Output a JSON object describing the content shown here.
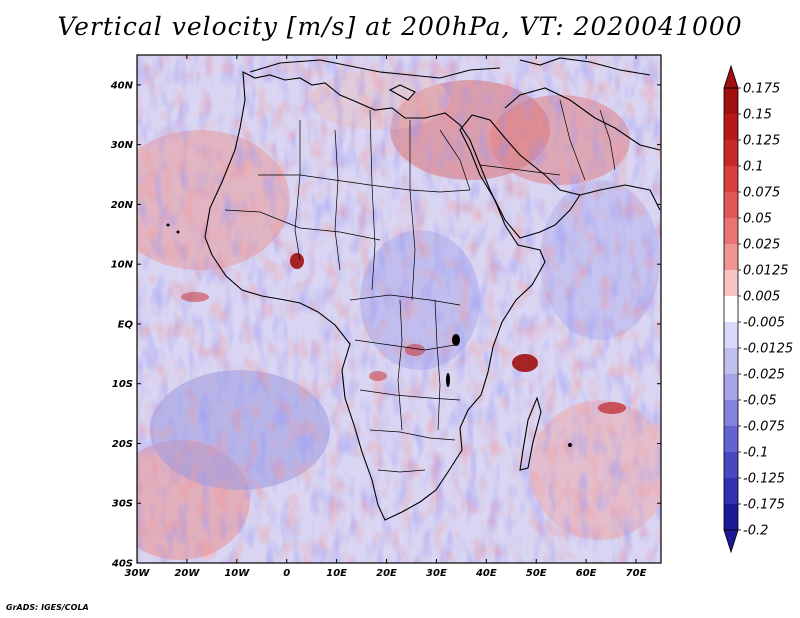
{
  "title": "Vertical velocity [m/s] at 200hPa, VT: 2020041000",
  "credit": "GrADS: IGES/COLA",
  "colors": {
    "positive_strong": "#a01010",
    "positive_light": "#f0b4b4",
    "negative_strong": "#1a1a99",
    "negative_light": "#c0c0ef",
    "zero_band": "#ffffff",
    "coastline": "#000000"
  },
  "map": {
    "lon_range": [
      -30,
      75
    ],
    "lat_range": [
      -40,
      45
    ],
    "lat_ticks": [
      {
        "value": 40,
        "label": "40N"
      },
      {
        "value": 30,
        "label": "30N"
      },
      {
        "value": 20,
        "label": "20N"
      },
      {
        "value": 10,
        "label": "10N"
      },
      {
        "value": 0,
        "label": "EQ"
      },
      {
        "value": -10,
        "label": "10S"
      },
      {
        "value": -20,
        "label": "20S"
      },
      {
        "value": -30,
        "label": "30S"
      },
      {
        "value": -40,
        "label": "40S"
      }
    ],
    "lon_ticks": [
      {
        "value": -30,
        "label": "30W"
      },
      {
        "value": -20,
        "label": "20W"
      },
      {
        "value": -10,
        "label": "10W"
      },
      {
        "value": 0,
        "label": "0"
      },
      {
        "value": 10,
        "label": "10E"
      },
      {
        "value": 20,
        "label": "20E"
      },
      {
        "value": 30,
        "label": "30E"
      },
      {
        "value": 40,
        "label": "40E"
      },
      {
        "value": 50,
        "label": "50E"
      },
      {
        "value": 60,
        "label": "60E"
      },
      {
        "value": 70,
        "label": "70E"
      }
    ]
  },
  "colorbar": {
    "labels": [
      "0.175",
      "0.15",
      "0.125",
      "0.1",
      "0.075",
      "0.05",
      "0.025",
      "0.0125",
      "0.005",
      "-0.005",
      "-0.0125",
      "-0.025",
      "-0.05",
      "-0.075",
      "-0.1",
      "-0.125",
      "-0.175",
      "-0.2"
    ],
    "bins": [
      {
        "color": "#a01010"
      },
      {
        "color": "#b81818"
      },
      {
        "color": "#c82828"
      },
      {
        "color": "#d84040"
      },
      {
        "color": "#e05858"
      },
      {
        "color": "#e87474"
      },
      {
        "color": "#f09494"
      },
      {
        "color": "#f8c4c4"
      },
      {
        "color": "#ffffff"
      },
      {
        "color": "#d8d8f8"
      },
      {
        "color": "#c0c0ef"
      },
      {
        "color": "#a4a4e6"
      },
      {
        "color": "#8484dc"
      },
      {
        "color": "#6464d0"
      },
      {
        "color": "#4848c0"
      },
      {
        "color": "#3030b0"
      },
      {
        "color": "#1a1a99"
      }
    ],
    "end_max_color": "#a01010",
    "end_min_color": "#1a1a99"
  }
}
